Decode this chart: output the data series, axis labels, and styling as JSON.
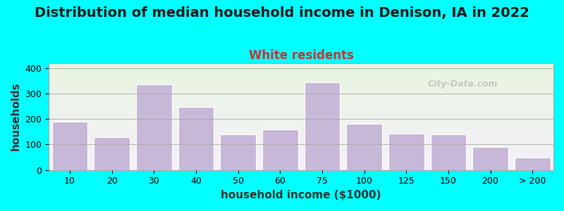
{
  "title": "Distribution of median household income in Denison, IA in 2022",
  "subtitle": "White residents",
  "xlabel": "household income ($1000)",
  "ylabel": "households",
  "background_color": "#00FFFF",
  "plot_bg_top": "#e8f5e0",
  "plot_bg_bottom": "#f5f0fa",
  "bar_color": "#c8b8d8",
  "bar_edge_color": "#ffffff",
  "categories": [
    "10",
    "20",
    "30",
    "40",
    "50",
    "60",
    "75",
    "100",
    "125",
    "150",
    "200",
    "> 200"
  ],
  "values": [
    190,
    128,
    335,
    248,
    140,
    160,
    345,
    182,
    142,
    140,
    90,
    48
  ],
  "ylim": [
    0,
    420
  ],
  "yticks": [
    0,
    100,
    200,
    300,
    400
  ],
  "title_fontsize": 14,
  "subtitle_fontsize": 12,
  "subtitle_color": "#cc3333",
  "axis_label_fontsize": 11,
  "tick_fontsize": 9,
  "watermark": "City-Data.com"
}
